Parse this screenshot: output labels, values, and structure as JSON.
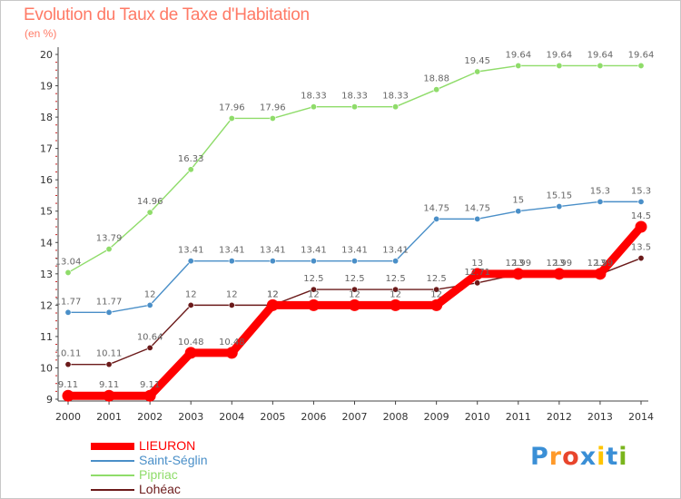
{
  "title": "Evolution du Taux de Taxe d'Habitation",
  "subtitle": "(en %)",
  "logo": {
    "text": "Proxiti",
    "colors": [
      "#3a8fd6",
      "#ff9a2a",
      "#e8452c",
      "#3a8fd6",
      "#ffc400",
      "#3a8fd6",
      "#7ab51d"
    ]
  },
  "chart_data": {
    "type": "line",
    "x": [
      2000,
      2001,
      2002,
      2003,
      2004,
      2005,
      2006,
      2007,
      2008,
      2009,
      2010,
      2011,
      2012,
      2013,
      2014
    ],
    "ylim": [
      9,
      20
    ],
    "yticks": [
      9,
      10,
      11,
      12,
      13,
      14,
      15,
      16,
      17,
      18,
      19,
      20
    ],
    "grid": false,
    "legend_position": "bottom-left",
    "series": [
      {
        "name": "LIEURON",
        "color": "#ff0000",
        "labels": true,
        "values": [
          9.11,
          9.11,
          9.11,
          10.48,
          10.48,
          12,
          12,
          12,
          12,
          12,
          13,
          13,
          13,
          13,
          14.5
        ],
        "value_labels": [
          "9.11",
          "9.11",
          "9.11",
          "10.48",
          "10.48",
          "12",
          "12",
          "12",
          "12",
          "12",
          "13",
          "13",
          "13",
          "13",
          "14.5"
        ]
      },
      {
        "name": "Saint-Séglin",
        "color": "#4a8fc8",
        "labels": true,
        "values": [
          11.77,
          11.77,
          12,
          13.41,
          13.41,
          13.41,
          13.41,
          13.41,
          13.41,
          14.75,
          14.75,
          15,
          15.15,
          15.3,
          15.3
        ],
        "value_labels": [
          "11.77",
          "11.77",
          "12",
          "13.41",
          "13.41",
          "13.41",
          "13.41",
          "13.41",
          "13.41",
          "14.75",
          "14.75",
          "15",
          "15.15",
          "15.3",
          "15.3"
        ]
      },
      {
        "name": "Pipriac",
        "color": "#8fdc6a",
        "labels": true,
        "values": [
          13.04,
          13.79,
          14.96,
          16.33,
          17.96,
          17.96,
          18.33,
          18.33,
          18.33,
          18.88,
          19.45,
          19.64,
          19.64,
          19.64,
          19.64
        ],
        "value_labels": [
          "13.04",
          "13.79",
          "14.96",
          "16.33",
          "17.96",
          "17.96",
          "18.33",
          "18.33",
          "18.33",
          "18.88",
          "19.45",
          "19.64",
          "19.64",
          "19.64",
          "19.64"
        ]
      },
      {
        "name": "Lohéac",
        "color": "#6b1a1a",
        "labels": true,
        "values": [
          10.11,
          10.11,
          10.64,
          12,
          12,
          12,
          12.5,
          12.5,
          12.5,
          12.5,
          12.71,
          12.99,
          12.99,
          12.99,
          13.5
        ],
        "value_labels": [
          "10.11",
          "10.11",
          "10.64",
          "12",
          "12",
          "12",
          "12.5",
          "12.5",
          "12.5",
          "12.5",
          "12.71",
          "12.99",
          "12.99",
          "12.99",
          "13.5"
        ]
      }
    ]
  }
}
